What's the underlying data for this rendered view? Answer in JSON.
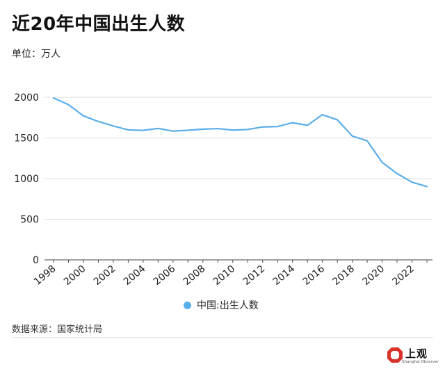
{
  "title": "近20年中国出生人数",
  "unit_label": "单位：万人",
  "source": "数据来源：国家统计局",
  "brand": {
    "name": "上观",
    "subtitle": "Shanghai Observer"
  },
  "colors": {
    "line": "#5aaee9",
    "grid": "#dddddd",
    "axis": "#444444",
    "logo_red": "#d8322a"
  },
  "chart_data": {
    "type": "line",
    "title": "近20年中国出生人数",
    "ylabel": "单位：万人",
    "xlabel": "",
    "ylim": [
      0,
      2000
    ],
    "yticks": [
      0,
      500,
      1000,
      1500,
      2000
    ],
    "xticks": [
      "1998",
      "2000",
      "2002",
      "2004",
      "2006",
      "2008",
      "2010",
      "2012",
      "2014",
      "2016",
      "2018",
      "2020",
      "2022"
    ],
    "x": [
      1998,
      1999,
      2000,
      2001,
      2002,
      2003,
      2004,
      2005,
      2006,
      2007,
      2008,
      2009,
      2010,
      2011,
      2012,
      2013,
      2014,
      2015,
      2016,
      2017,
      2018,
      2019,
      2020,
      2021,
      2022,
      2023
    ],
    "series": [
      {
        "name": "中国:出生人数",
        "values": [
          1991,
          1909,
          1771,
          1702,
          1647,
          1599,
          1593,
          1617,
          1584,
          1594,
          1608,
          1615,
          1596,
          1604,
          1635,
          1640,
          1687,
          1655,
          1786,
          1723,
          1523,
          1465,
          1200,
          1062,
          956,
          902
        ]
      }
    ],
    "grid": true,
    "legend": "bottom-center"
  }
}
